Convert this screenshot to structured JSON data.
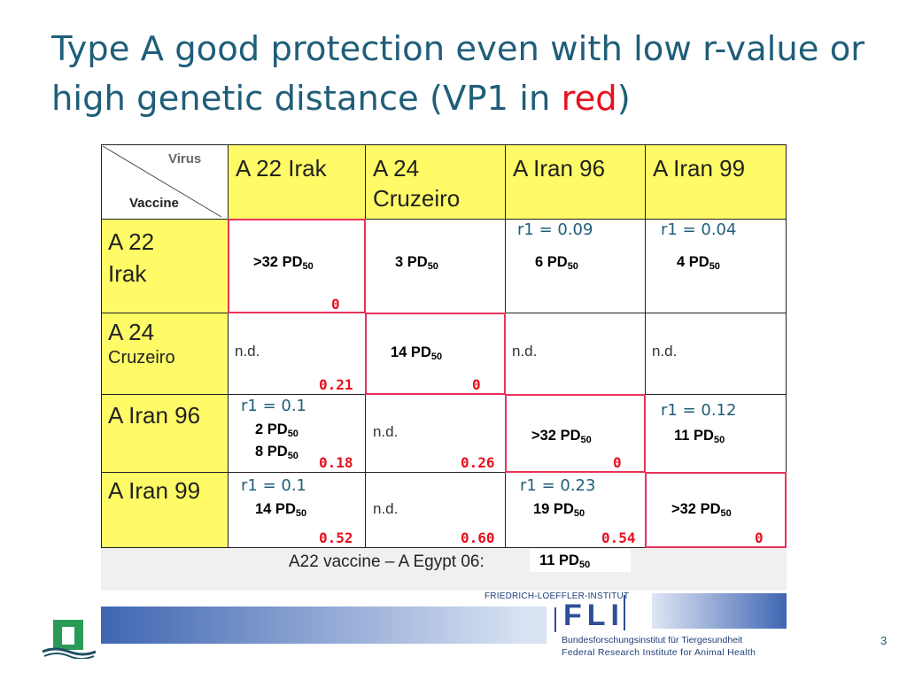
{
  "title": {
    "main": "Type A good protection even with low r-value or high genetic distance (VP1 in ",
    "red": "red",
    "close": ")"
  },
  "corner": {
    "virus": "Virus",
    "vaccine": "Vaccine"
  },
  "columns": [
    {
      "line1": "A 22 Irak",
      "line2": ""
    },
    {
      "line1": "A 24",
      "line2": "Cruzeiro"
    },
    {
      "line1": "A Iran 96",
      "line2": ""
    },
    {
      "line1": "A Iran 99",
      "line2": ""
    }
  ],
  "rows": [
    {
      "line1": "A 22",
      "line2": "Irak"
    },
    {
      "line1": "A 24",
      "line2": "Cruzeiro"
    },
    {
      "line1": "A Iran 96",
      "line2": ""
    },
    {
      "line1": "A Iran 99",
      "line2": ""
    }
  ],
  "cells": {
    "r0c0": {
      "pd": ">32 PD",
      "sub": "50",
      "vp1": "0"
    },
    "r0c1": {
      "pd": "3 PD",
      "sub": "50"
    },
    "r0c2": {
      "r1": "r1 = 0.09",
      "pd": "6 PD",
      "sub": "50"
    },
    "r0c3": {
      "r1": "r1 = 0.04",
      "pd": "4 PD",
      "sub": "50"
    },
    "r1c0": {
      "nd": "n.d.",
      "vp1": "0.21"
    },
    "r1c1": {
      "pd": "14 PD",
      "sub": "50",
      "vp1": "0"
    },
    "r1c2": {
      "nd": "n.d."
    },
    "r1c3": {
      "nd": "n.d."
    },
    "r2c0": {
      "r1": "r1 = 0.1",
      "pd": "2 PD",
      "sub": "50",
      "pd2": "8 PD",
      "sub2": "50",
      "vp1": "0.18"
    },
    "r2c1": {
      "nd": "n.d.",
      "vp1": "0.26"
    },
    "r2c2": {
      "pd": ">32 PD",
      "sub": "50",
      "vp1": "0"
    },
    "r2c3": {
      "r1": "r1 = 0.12",
      "pd": "11 PD",
      "sub": "50"
    },
    "r3c0": {
      "r1": "r1 = 0.1",
      "pd": "14 PD",
      "sub": "50",
      "vp1": "0.52"
    },
    "r3c1": {
      "nd": "n.d.",
      "vp1": "0.60"
    },
    "r3c2": {
      "r1": "r1 = 0.23",
      "pd": "19 PD",
      "sub": "50",
      "vp1": "0.54"
    },
    "r3c3": {
      "pd": ">32 PD",
      "sub": "50",
      "vp1": "0"
    }
  },
  "egypt": {
    "label": "A22 vaccine – A Egypt 06:",
    "pd": "11 PD",
    "sub": "50"
  },
  "footer": {
    "institute_top": "FRIEDRICH-LOEFFLER-INSTITUT",
    "logo": "FLI",
    "sub1": "Bundesforschungsinstitut für Tiergesundheit",
    "sub2": "Federal Research Institute for Animal Health",
    "page": "3"
  },
  "colors": {
    "title": "#1f5e79",
    "red": "#e8101e",
    "header": "#fffb66",
    "fli_blue": "#2d4f9a"
  }
}
